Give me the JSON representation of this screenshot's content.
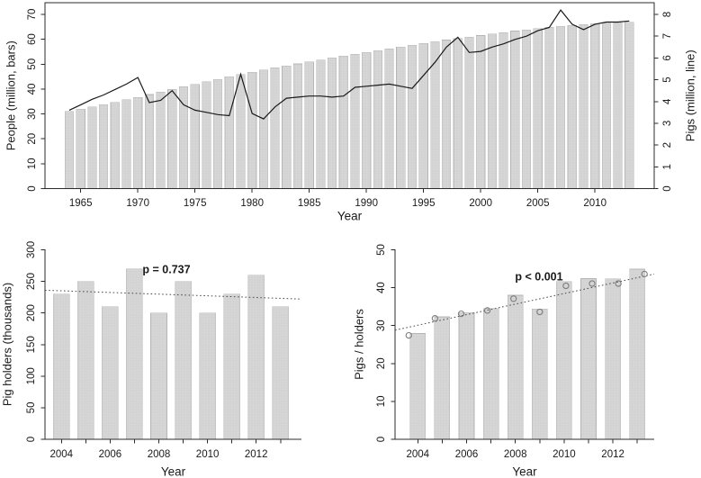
{
  "figure": {
    "background": "#ffffff",
    "bar_fill": "#d6d6d6",
    "bar_dot": "#c2c2c2",
    "bar_stroke": "#b5b5b5",
    "axis_color": "#2b2b2b",
    "line_color": "#1a1a1a",
    "trend_color": "#4a4a4a",
    "point_stroke": "#7d7d7d"
  },
  "chart_data": [
    {
      "type": "bar",
      "frame": true,
      "xlabel": "Year",
      "ylabel": "People (million, bars)",
      "y2label": "Pigs (million, line)",
      "ylim": [
        0,
        70
      ],
      "yticks": [
        0,
        10,
        20,
        30,
        40,
        50,
        60,
        70
      ],
      "y2lim": [
        0,
        8
      ],
      "y2ticks": [
        0,
        1,
        2,
        3,
        4,
        5,
        6,
        7,
        8
      ],
      "xticks": [
        1965,
        1970,
        1975,
        1980,
        1985,
        1990,
        1995,
        2000,
        2005,
        2010
      ],
      "years": [
        1964,
        1965,
        1966,
        1967,
        1968,
        1969,
        1970,
        1971,
        1972,
        1973,
        1974,
        1975,
        1976,
        1977,
        1978,
        1979,
        1980,
        1981,
        1982,
        1983,
        1984,
        1985,
        1986,
        1987,
        1988,
        1989,
        1990,
        1991,
        1992,
        1993,
        1994,
        1995,
        1996,
        1997,
        1998,
        1999,
        2000,
        2001,
        2002,
        2003,
        2004,
        2005,
        2006,
        2007,
        2008,
        2009,
        2010,
        2011,
        2012,
        2013
      ],
      "series": [
        {
          "name": "People (million, bars)",
          "type": "bar",
          "axis": "left",
          "values": [
            31.0,
            31.9,
            32.8,
            33.7,
            34.7,
            35.7,
            36.7,
            37.8,
            38.8,
            39.9,
            40.9,
            41.9,
            42.9,
            43.9,
            44.9,
            45.8,
            46.7,
            47.6,
            48.5,
            49.3,
            50.1,
            50.9,
            51.7,
            52.5,
            53.3,
            54.0,
            54.7,
            55.5,
            56.2,
            56.9,
            57.6,
            58.3,
            59.0,
            59.7,
            60.3,
            60.9,
            61.5,
            62.1,
            62.7,
            63.3,
            63.8,
            64.3,
            64.8,
            65.2,
            65.6,
            66.0,
            66.3,
            66.5,
            66.7,
            66.9
          ]
        },
        {
          "name": "Pigs (million, line)",
          "type": "line",
          "axis": "right",
          "values": [
            3.6,
            3.85,
            4.1,
            4.3,
            4.55,
            4.8,
            5.1,
            3.95,
            4.05,
            4.5,
            3.85,
            3.6,
            3.5,
            3.4,
            3.35,
            5.25,
            3.45,
            3.2,
            3.75,
            4.15,
            4.2,
            4.25,
            4.25,
            4.2,
            4.25,
            4.65,
            4.7,
            4.75,
            4.8,
            4.7,
            4.6,
            5.2,
            5.8,
            6.5,
            6.95,
            6.25,
            6.3,
            6.5,
            6.65,
            6.85,
            7.0,
            7.25,
            7.4,
            8.2,
            7.55,
            7.3,
            7.55,
            7.65,
            7.65,
            7.7
          ]
        }
      ]
    },
    {
      "type": "bar",
      "frame": false,
      "xlabel": "Year",
      "ylabel": "Pig holders (thousands)",
      "ylim": [
        0,
        300
      ],
      "yticks": [
        0,
        50,
        100,
        150,
        200,
        250,
        300
      ],
      "xtick_labels": [
        2004,
        2006,
        2008,
        2010,
        2012
      ],
      "years": [
        2004,
        2005,
        2006,
        2007,
        2008,
        2009,
        2010,
        2011,
        2012,
        2013
      ],
      "values": [
        230,
        250,
        210,
        270,
        200,
        250,
        200,
        230,
        260,
        210
      ],
      "annotation": "p = 0.737",
      "trend": {
        "start_value": 236,
        "end_value": 222,
        "style": "dotted"
      }
    },
    {
      "type": "bar",
      "frame": false,
      "xlabel": "Year",
      "ylabel": "Pigs / holders",
      "ylim": [
        0,
        50
      ],
      "yticks": [
        0,
        10,
        20,
        30,
        40,
        50
      ],
      "xtick_labels": [
        2004,
        2006,
        2008,
        2010,
        2012
      ],
      "years": [
        2004,
        2005,
        2006,
        2007,
        2008,
        2009,
        2010,
        2011,
        2012,
        2013
      ],
      "values": [
        27.9,
        32.3,
        33.4,
        34.5,
        38.0,
        34.4,
        41.6,
        42.4,
        42.3,
        44.9
      ],
      "points": [
        27.4,
        31.9,
        33.1,
        34.0,
        37.1,
        33.6,
        40.5,
        41.1,
        41.1,
        43.6
      ],
      "annotation": "p < 0.001",
      "trend": {
        "start_value": 28.8,
        "end_value": 43.6,
        "style": "dotted"
      }
    }
  ]
}
